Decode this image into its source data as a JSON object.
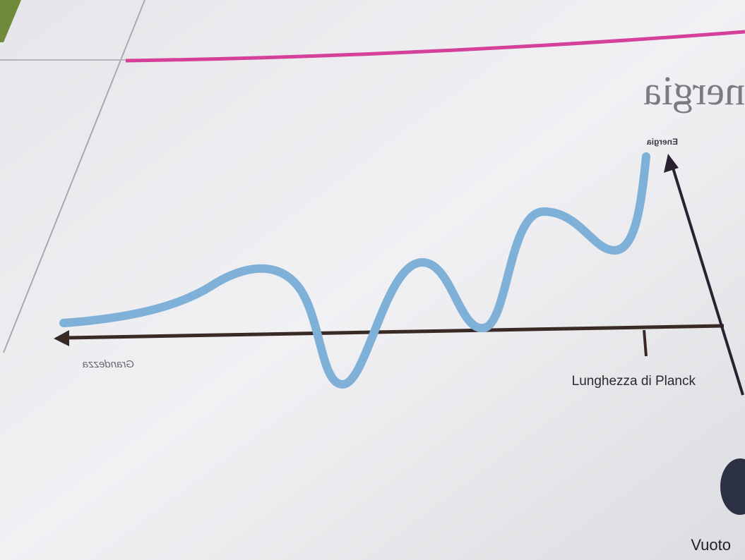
{
  "heading": "nergia",
  "labels": {
    "energy_axis": "Energia",
    "size_axis": "Grandezza",
    "planck": "Lunghezza di Planck",
    "vacuum": "Vuoto"
  }
}
